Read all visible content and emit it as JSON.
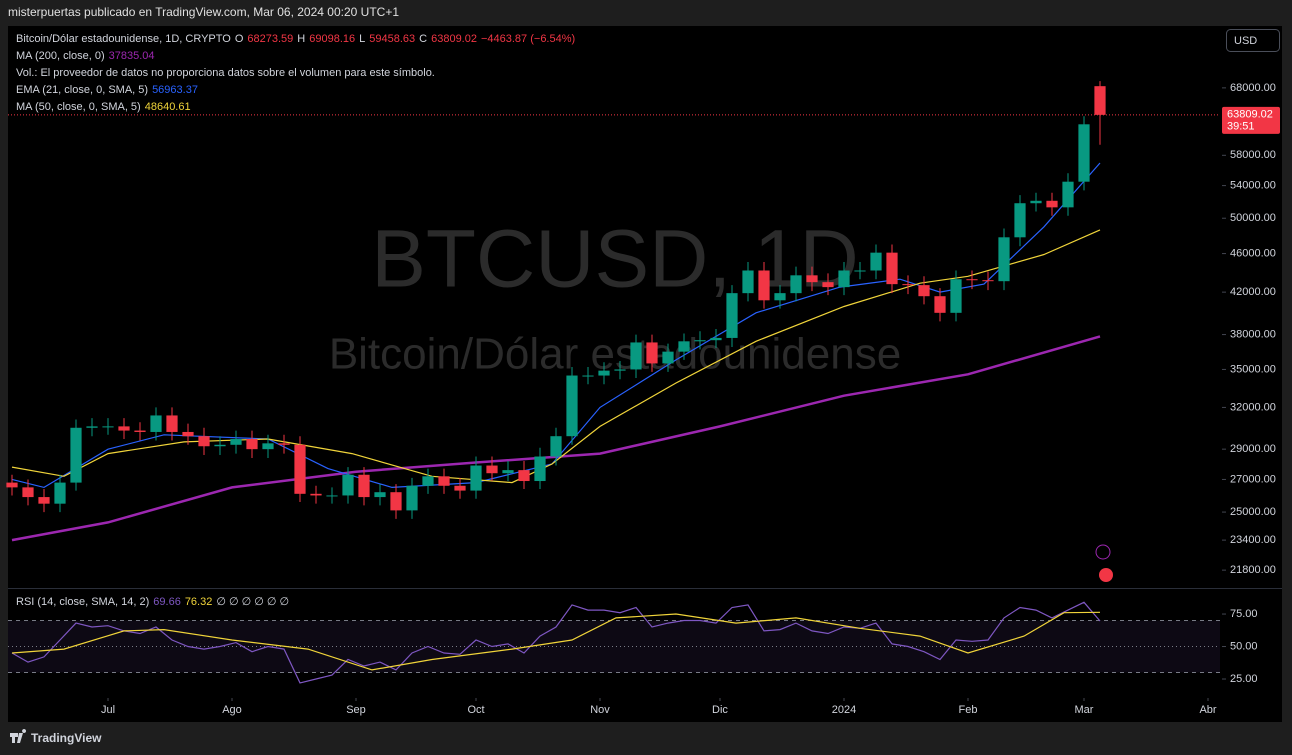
{
  "header": {
    "attribution": "misterpuertas publicado en TradingView.com, Mar 06, 2024 00:20 UTC+1",
    "currency": "USD",
    "brand": "TradingView"
  },
  "chart_data": [
    {
      "type": "candlestick",
      "legend_title": "Bitcoin/Dólar estadounidense, 1D, CRYPTO",
      "ohlc_keys": [
        "O",
        "H",
        "L",
        "C"
      ],
      "change": "−4463.87 (−6.54%)",
      "volume_note": "Vol.: El proveedor de datos no proporciona datos sobre el volumen para este símbolo.",
      "watermark": [
        "BTCUSD, 1D",
        "Bitcoin/Dólar estadounidense"
      ],
      "countdown": "39:51",
      "log": true,
      "up_color": "#089981",
      "down_color": "#f23645",
      "x": [
        "2023-06-07",
        "2023-06-11",
        "2023-06-15",
        "2023-06-19",
        "2023-06-23",
        "2023-06-27",
        "2023-07-01",
        "2023-07-05",
        "2023-07-09",
        "2023-07-13",
        "2023-07-17",
        "2023-07-21",
        "2023-07-25",
        "2023-07-29",
        "2023-08-02",
        "2023-08-06",
        "2023-08-10",
        "2023-08-14",
        "2023-08-18",
        "2023-08-22",
        "2023-08-26",
        "2023-08-30",
        "2023-09-03",
        "2023-09-07",
        "2023-09-11",
        "2023-09-15",
        "2023-09-19",
        "2023-09-23",
        "2023-09-27",
        "2023-10-01",
        "2023-10-05",
        "2023-10-09",
        "2023-10-13",
        "2023-10-17",
        "2023-10-21",
        "2023-10-25",
        "2023-10-29",
        "2023-11-02",
        "2023-11-06",
        "2023-11-10",
        "2023-11-14",
        "2023-11-18",
        "2023-11-22",
        "2023-11-26",
        "2023-11-30",
        "2023-12-04",
        "2023-12-08",
        "2023-12-12",
        "2023-12-16",
        "2023-12-20",
        "2023-12-24",
        "2023-12-28",
        "2024-01-01",
        "2024-01-05",
        "2024-01-09",
        "2024-01-13",
        "2024-01-17",
        "2024-01-21",
        "2024-01-25",
        "2024-01-29",
        "2024-02-02",
        "2024-02-06",
        "2024-02-10",
        "2024-02-14",
        "2024-02-18",
        "2024-02-22",
        "2024-02-26",
        "2024-03-01",
        "2024-03-05"
      ],
      "open": [
        26800,
        26500,
        25900,
        25500,
        26800,
        30500,
        30600,
        30600,
        30300,
        30200,
        31400,
        30200,
        29900,
        29200,
        29300,
        29700,
        29000,
        29400,
        29300,
        26100,
        26000,
        26000,
        27300,
        25900,
        26200,
        25100,
        26600,
        27200,
        26600,
        26300,
        27900,
        27400,
        27600,
        26900,
        28500,
        29900,
        34500,
        34500,
        34900,
        35000,
        37300,
        35500,
        36500,
        37400,
        37500,
        37700,
        41900,
        44200,
        41200,
        41900,
        43700,
        43000,
        42500,
        44200,
        44200,
        46100,
        42800,
        42700,
        41600,
        40000,
        43300,
        43200,
        43100,
        47800,
        51800,
        52100,
        51300,
        54500,
        68273.59
      ],
      "high": [
        27300,
        27000,
        26400,
        27300,
        31100,
        31200,
        31200,
        31200,
        30900,
        32000,
        32000,
        30800,
        30500,
        29900,
        30300,
        30300,
        30000,
        30000,
        29900,
        26600,
        26500,
        27800,
        27800,
        26700,
        26700,
        27100,
        27700,
        27700,
        27100,
        28500,
        28500,
        28200,
        28200,
        29100,
        30500,
        35200,
        35200,
        35600,
        35700,
        38000,
        38000,
        37200,
        38100,
        38300,
        38500,
        42700,
        45100,
        45100,
        42700,
        44600,
        44600,
        43900,
        45100,
        45100,
        47000,
        47000,
        43700,
        43600,
        42400,
        44200,
        44200,
        44100,
        48800,
        52800,
        53100,
        53100,
        55600,
        63600,
        69098.16
      ],
      "low": [
        26000,
        25400,
        25000,
        25000,
        26300,
        29900,
        30000,
        29700,
        29600,
        29600,
        29600,
        29300,
        28600,
        28600,
        28700,
        28400,
        28400,
        28700,
        25600,
        25500,
        25500,
        25500,
        25400,
        25400,
        24600,
        24600,
        26100,
        26100,
        25800,
        25800,
        26900,
        26900,
        26400,
        26400,
        27900,
        29300,
        33800,
        33800,
        34200,
        34300,
        34800,
        34800,
        35800,
        36700,
        36800,
        36900,
        41100,
        40400,
        40400,
        41100,
        42100,
        41700,
        41700,
        43300,
        43300,
        41900,
        41800,
        40800,
        39200,
        39200,
        42300,
        42200,
        42200,
        46800,
        50800,
        50300,
        50300,
        53400,
        59458.63
      ],
      "close": [
        26500,
        25900,
        25500,
        26800,
        30500,
        30600,
        30600,
        30300,
        30200,
        31400,
        30200,
        29900,
        29200,
        29300,
        29700,
        29000,
        29400,
        29300,
        26100,
        26000,
        26000,
        27300,
        25900,
        26200,
        25100,
        26600,
        27200,
        26600,
        26300,
        27900,
        27400,
        27600,
        26900,
        28500,
        29900,
        34500,
        34500,
        34900,
        35000,
        37300,
        35500,
        36500,
        37400,
        37500,
        37700,
        41900,
        44200,
        41200,
        41900,
        43700,
        43000,
        42500,
        44200,
        44200,
        46100,
        42800,
        42700,
        41600,
        40000,
        43300,
        43200,
        43100,
        47800,
        51800,
        52100,
        51300,
        54500,
        62400,
        63809.02
      ],
      "series": [
        {
          "name": "MA (200, close, 0)",
          "color": "#9c27b0",
          "x": [
            "2023-06-07",
            "2023-07-01",
            "2023-08-01",
            "2023-09-01",
            "2023-10-01",
            "2023-11-01",
            "2023-12-01",
            "2024-01-01",
            "2024-02-01",
            "2024-03-05"
          ],
          "values": [
            23400,
            24400,
            26500,
            27500,
            28100,
            28700,
            30600,
            32900,
            34600,
            37835.04
          ]
        },
        {
          "name": "EMA (21, close, 0, SMA, 5)",
          "color": "#2962ff",
          "x": [
            "2023-06-07",
            "2023-06-15",
            "2023-07-01",
            "2023-07-15",
            "2023-08-10",
            "2023-08-25",
            "2023-09-10",
            "2023-10-01",
            "2023-10-20",
            "2023-11-01",
            "2023-11-20",
            "2023-12-10",
            "2023-12-31",
            "2024-01-15",
            "2024-01-25",
            "2024-02-05",
            "2024-02-20",
            "2024-03-05"
          ],
          "values": [
            27000,
            26500,
            29000,
            30000,
            29700,
            27700,
            26500,
            26800,
            28000,
            32000,
            35800,
            40000,
            42500,
            43300,
            42000,
            42800,
            49000,
            56963.37
          ]
        },
        {
          "name": "MA (50, close, 0, SMA, 5)",
          "color": "#f0d43a",
          "x": [
            "2023-06-07",
            "2023-06-20",
            "2023-07-01",
            "2023-07-20",
            "2023-08-10",
            "2023-08-31",
            "2023-09-20",
            "2023-10-10",
            "2023-10-20",
            "2023-11-01",
            "2023-11-20",
            "2023-12-10",
            "2024-01-01",
            "2024-01-20",
            "2024-02-01",
            "2024-02-20",
            "2024-03-05"
          ],
          "values": [
            27800,
            27200,
            28700,
            29500,
            29700,
            28700,
            27200,
            26800,
            28000,
            30600,
            33900,
            37400,
            40600,
            42900,
            43600,
            45900,
            48640.61
          ]
        }
      ],
      "xlim": [
        "2023-06-06",
        "2024-04-04"
      ],
      "xticks": [
        {
          "value": "2023-07-01",
          "label": "Jul"
        },
        {
          "value": "2023-08-01",
          "label": "Ago"
        },
        {
          "value": "2023-09-01",
          "label": "Sep"
        },
        {
          "value": "2023-10-01",
          "label": "Oct"
        },
        {
          "value": "2023-11-01",
          "label": "Nov"
        },
        {
          "value": "2023-12-01",
          "label": "Dic"
        },
        {
          "value": "2024-01-01",
          "label": "2024"
        },
        {
          "value": "2024-02-01",
          "label": "Feb"
        },
        {
          "value": "2024-03-01",
          "label": "Mar"
        },
        {
          "value": "2024-04-01",
          "label": "Abr"
        }
      ],
      "ylim": [
        20950,
        78500
      ],
      "yticks": [
        {
          "value": 21800,
          "label": "21800.00"
        },
        {
          "value": 23400,
          "label": "23400.00"
        },
        {
          "value": 25000,
          "label": "25000.00"
        },
        {
          "value": 27000,
          "label": "27000.00"
        },
        {
          "value": 29000,
          "label": "29000.00"
        },
        {
          "value": 32000,
          "label": "32000.00"
        },
        {
          "value": 35000,
          "label": "35000.00"
        },
        {
          "value": 38000,
          "label": "38000.00"
        },
        {
          "value": 42000,
          "label": "42000.00"
        },
        {
          "value": 46000,
          "label": "46000.00"
        },
        {
          "value": 50000,
          "label": "50000.00"
        },
        {
          "value": 54000,
          "label": "54000.00"
        },
        {
          "value": 58000,
          "label": "58000.00"
        },
        {
          "value": 68000,
          "label": "68000.00"
        }
      ]
    },
    {
      "type": "line",
      "title": "RSI (14, close, SMA, 14, 2)",
      "placeholders": "∅ ∅ ∅ ∅ ∅ ∅",
      "band_levels": [
        30,
        50,
        70
      ],
      "x": [
        "2023-06-07",
        "2023-06-11",
        "2023-06-15",
        "2023-06-19",
        "2023-06-23",
        "2023-06-27",
        "2023-07-01",
        "2023-07-05",
        "2023-07-09",
        "2023-07-13",
        "2023-07-17",
        "2023-07-21",
        "2023-07-25",
        "2023-07-29",
        "2023-08-02",
        "2023-08-06",
        "2023-08-10",
        "2023-08-14",
        "2023-08-18",
        "2023-08-22",
        "2023-08-26",
        "2023-08-30",
        "2023-09-03",
        "2023-09-07",
        "2023-09-11",
        "2023-09-15",
        "2023-09-19",
        "2023-09-23",
        "2023-09-27",
        "2023-10-01",
        "2023-10-05",
        "2023-10-09",
        "2023-10-13",
        "2023-10-17",
        "2023-10-21",
        "2023-10-25",
        "2023-10-29",
        "2023-11-02",
        "2023-11-06",
        "2023-11-10",
        "2023-11-14",
        "2023-11-18",
        "2023-11-22",
        "2023-11-26",
        "2023-11-30",
        "2023-12-04",
        "2023-12-08",
        "2023-12-12",
        "2023-12-16",
        "2023-12-20",
        "2023-12-24",
        "2023-12-28",
        "2024-01-01",
        "2024-01-05",
        "2024-01-09",
        "2024-01-13",
        "2024-01-17",
        "2024-01-21",
        "2024-01-25",
        "2024-01-29",
        "2024-02-02",
        "2024-02-06",
        "2024-02-10",
        "2024-02-14",
        "2024-02-18",
        "2024-02-22",
        "2024-02-26",
        "2024-03-01",
        "2024-03-05"
      ],
      "series": [
        {
          "name": "RSI",
          "color": "#7e57c2",
          "values": [
            45,
            38,
            42,
            55,
            68,
            65,
            66,
            62,
            60,
            65,
            55,
            50,
            48,
            50,
            53,
            46,
            50,
            48,
            22,
            25,
            28,
            40,
            35,
            38,
            32,
            45,
            50,
            45,
            44,
            55,
            50,
            52,
            45,
            58,
            65,
            82,
            78,
            78,
            76,
            80,
            65,
            68,
            70,
            70,
            68,
            80,
            82,
            62,
            63,
            68,
            62,
            60,
            65,
            64,
            68,
            52,
            50,
            46,
            40,
            55,
            54,
            55,
            72,
            80,
            78,
            72,
            78,
            84,
            69.66
          ]
        },
        {
          "name": "RSI MA",
          "color": "#f0d43a",
          "x": [
            "2023-06-07",
            "2023-06-20",
            "2023-07-05",
            "2023-07-15",
            "2023-08-01",
            "2023-08-20",
            "2023-09-05",
            "2023-09-20",
            "2023-10-10",
            "2023-10-25",
            "2023-11-05",
            "2023-11-20",
            "2023-12-05",
            "2023-12-20",
            "2024-01-05",
            "2024-01-20",
            "2024-02-01",
            "2024-02-15",
            "2024-02-25",
            "2024-03-05"
          ],
          "values": [
            45,
            48,
            62,
            63,
            55,
            48,
            32,
            40,
            48,
            55,
            72,
            75,
            68,
            72,
            64,
            58,
            45,
            58,
            76,
            76.32
          ]
        }
      ],
      "ylim": [
        12.7,
        93.5
      ],
      "yticks": [
        {
          "value": 25,
          "label": "25.00"
        },
        {
          "value": 50,
          "label": "50.00"
        },
        {
          "value": 75,
          "label": "75.00"
        }
      ]
    }
  ]
}
